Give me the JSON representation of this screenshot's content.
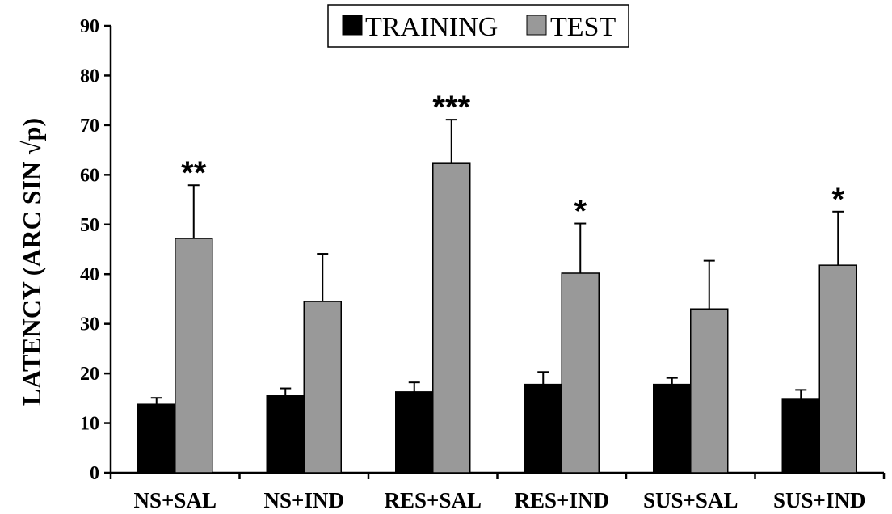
{
  "chart_data": {
    "type": "bar",
    "categories": [
      "NS+SAL",
      "NS+IND",
      "RES+SAL",
      "RES+IND",
      "SUS+SAL",
      "SUS+IND"
    ],
    "series": [
      {
        "name": "TRAINING",
        "color": "#000000",
        "values": [
          13.8,
          15.5,
          16.3,
          17.8,
          17.8,
          14.8
        ],
        "errors": [
          1.3,
          1.5,
          1.9,
          2.5,
          1.3,
          1.9
        ]
      },
      {
        "name": "TEST",
        "color": "#999999",
        "values": [
          47.2,
          34.5,
          62.3,
          40.2,
          33.0,
          41.8
        ],
        "errors": [
          10.7,
          9.6,
          8.8,
          10.0,
          9.7,
          10.8
        ]
      }
    ],
    "significance": [
      "**",
      "",
      "***",
      "*",
      "",
      "*"
    ],
    "ylabel": "LATENCY (ARC SIN √p)",
    "xlabel": "",
    "ylim": [
      0,
      90
    ],
    "yticks": [
      0,
      10,
      20,
      30,
      40,
      50,
      60,
      70,
      80,
      90
    ],
    "grid": false,
    "legend_position": "top-center"
  }
}
